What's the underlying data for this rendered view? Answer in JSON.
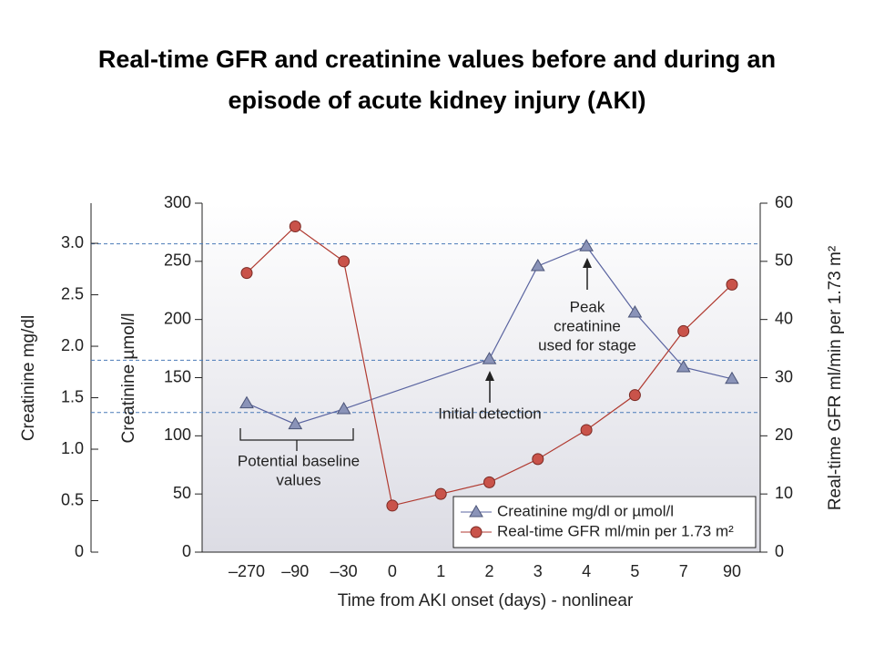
{
  "chart_data": {
    "type": "line",
    "title": [
      "Real-time GFR and creatinine values before and during an",
      "episode of acute kidney injury (AKI)"
    ],
    "categories": [
      "–270",
      "–90",
      "–30",
      "0",
      "1",
      "2",
      "3",
      "4",
      "5",
      "7",
      "90"
    ],
    "xlabel": "Time from AKI onset (days) - nonlinear",
    "ylabel": "Creatinine µmol/l",
    "ylim": [
      0,
      300
    ],
    "yticks": [
      0,
      50,
      100,
      150,
      200,
      250,
      300
    ],
    "y_outer_label": "Creatinine mg/dl",
    "y_outer_lim": [
      0,
      3.39
    ],
    "y_outer_ticks": [
      0,
      0.5,
      {
        "value": 1,
        "label": "1.0"
      },
      1.5,
      {
        "value": 2,
        "label": "2.0"
      },
      2.5,
      {
        "value": 3,
        "label": "3.0"
      }
    ],
    "y2label": "Real-time GFR ml/min per 1.73 m²",
    "y2lim": [
      0,
      60
    ],
    "y2ticks": [
      0,
      10,
      20,
      30,
      40,
      50,
      60
    ],
    "reference_lines": [
      265,
      165,
      120
    ],
    "series": [
      {
        "name": "Creatinine mg/dl or µmol/l",
        "color": "#8a93b8",
        "marker": "triangle",
        "x": [
          "–270",
          "–90",
          "–30",
          "2",
          "3",
          "4",
          "5",
          "7",
          "90"
        ],
        "values": [
          128,
          110,
          123,
          166,
          246,
          263,
          206,
          159,
          149
        ]
      },
      {
        "name": "Real-time GFR ml/min per 1.73 m²",
        "color": "#c9534a",
        "marker": "circle",
        "axis": "y2",
        "x": [
          "–270",
          "–90",
          "–30",
          "0",
          "1",
          "2",
          "3",
          "4",
          "5",
          "7",
          "90"
        ],
        "values": [
          48,
          56,
          50,
          8,
          10,
          12,
          16,
          21,
          27,
          38,
          46
        ]
      }
    ],
    "annotations": [
      {
        "lines": [
          "Peak",
          "creatinine",
          "used for stage"
        ]
      },
      {
        "lines": [
          "Initial detection"
        ]
      },
      {
        "lines": [
          "Potential baseline",
          "values"
        ]
      }
    ],
    "legend": "lower right"
  }
}
